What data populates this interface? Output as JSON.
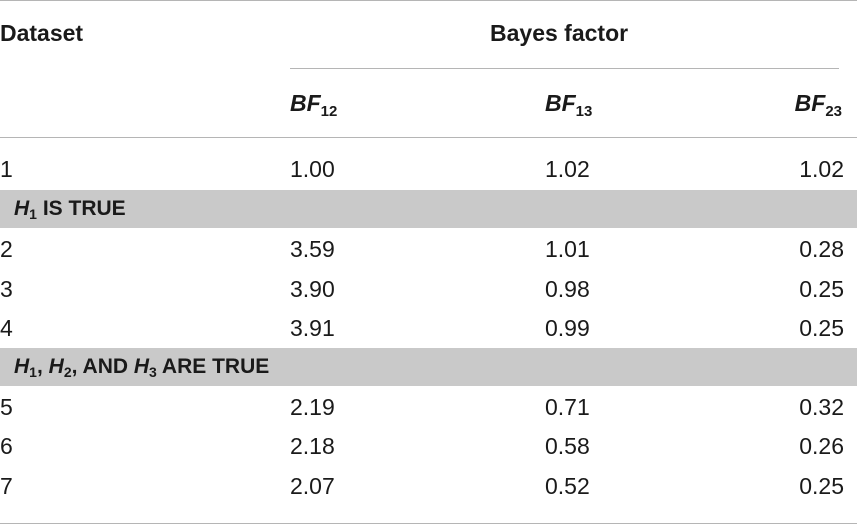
{
  "header": {
    "dataset_label": "Dataset",
    "group_label": "Bayes factor",
    "columns": [
      {
        "base": "BF",
        "sub": "12"
      },
      {
        "base": "BF",
        "sub": "13"
      },
      {
        "base": "BF",
        "sub": "23"
      }
    ]
  },
  "rows_ungrouped": [
    {
      "id": "1",
      "v1": "1.00",
      "v2": "1.02",
      "v3": "1.02"
    }
  ],
  "group1": {
    "label_var": "H",
    "label_sub": "1",
    "label_rest": "IS TRUE",
    "rows": [
      {
        "id": "2",
        "v1": "3.59",
        "v2": "1.01",
        "v3": "0.28"
      },
      {
        "id": "3",
        "v1": "3.90",
        "v2": "0.98",
        "v3": "0.25"
      },
      {
        "id": "4",
        "v1": "3.91",
        "v2": "0.99",
        "v3": "0.25"
      }
    ]
  },
  "group2": {
    "label_parts": [
      {
        "var": "H",
        "sub": "1",
        "sep": ","
      },
      {
        "var": "H",
        "sub": "2",
        "sep": ","
      },
      {
        "pre": "AND",
        "var": "H",
        "sub": "3",
        "sep": ""
      }
    ],
    "label_rest": "ARE TRUE",
    "rows": [
      {
        "id": "5",
        "v1": "2.19",
        "v2": "0.71",
        "v3": "0.32"
      },
      {
        "id": "6",
        "v1": "2.18",
        "v2": "0.58",
        "v3": "0.26"
      },
      {
        "id": "7",
        "v1": "2.07",
        "v2": "0.52",
        "v3": "0.25"
      }
    ]
  }
}
